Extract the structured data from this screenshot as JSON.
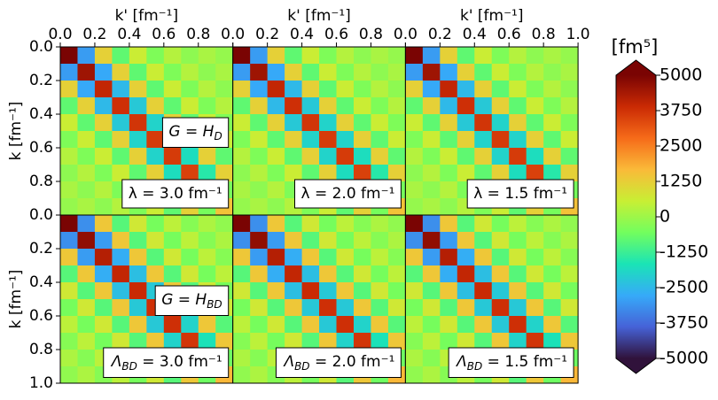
{
  "chart_data": {
    "type": "heatmap",
    "xlabel": "k' [fm⁻¹]",
    "ylabel": "k [fm⁻¹]",
    "xlim": [
      0,
      1
    ],
    "ylim": [
      0,
      1
    ],
    "xticks": [
      {
        "value": 0,
        "label": "0.0"
      },
      {
        "value": 0.2,
        "label": "0.2"
      },
      {
        "value": 0.4,
        "label": "0.4"
      },
      {
        "value": 0.6,
        "label": "0.6"
      },
      {
        "value": 0.8,
        "label": "0.8"
      },
      {
        "value": 1,
        "label": "1.0"
      }
    ],
    "yticks": [
      {
        "value": 0,
        "label": "0.0"
      },
      {
        "value": 0.2,
        "label": "0.2"
      },
      {
        "value": 0.4,
        "label": "0.4"
      },
      {
        "value": 0.6,
        "label": "0.6"
      },
      {
        "value": 0.8,
        "label": "0.8"
      },
      {
        "value": 1,
        "label": "1.0"
      }
    ],
    "colorbar": {
      "label": "[fm⁵]",
      "lim": [
        -5000,
        5000
      ],
      "ticks": [
        5000,
        3750,
        2500,
        1250,
        0,
        -1250,
        -2500,
        -3750,
        -5000
      ],
      "colormap": [
        "#30123b",
        "#4662d7",
        "#36aaf9",
        "#1ae4b6",
        "#72fe5e",
        "#c8ef34",
        "#faba39",
        "#f66b19",
        "#ca2a04",
        "#7a0403"
      ]
    },
    "panels": [
      {
        "annotations": [
          {
            "main": "G = H",
            "sub": "D"
          },
          {
            "text": "λ = 3.0 fm⁻¹"
          }
        ],
        "z": [
          [
            5000,
            -3000,
            1200,
            -800,
            600,
            -400,
            300,
            -200,
            150,
            -100
          ],
          [
            -3000,
            4500,
            -2800,
            1200,
            -800,
            600,
            -400,
            300,
            -200,
            150
          ],
          [
            1200,
            -2800,
            4000,
            -2500,
            1200,
            -800,
            600,
            -400,
            300,
            -200
          ],
          [
            -800,
            1200,
            -2500,
            3800,
            -2200,
            1200,
            -800,
            600,
            -400,
            300
          ],
          [
            600,
            -800,
            1200,
            -2200,
            3700,
            -2000,
            1200,
            -800,
            600,
            -400
          ],
          [
            -400,
            600,
            -800,
            1200,
            -2000,
            3600,
            -2000,
            1200,
            -800,
            600
          ],
          [
            300,
            -400,
            600,
            -800,
            1200,
            -2000,
            3600,
            -1800,
            1200,
            -800
          ],
          [
            -200,
            300,
            -400,
            600,
            -800,
            1200,
            -1800,
            3500,
            -1500,
            1200
          ],
          [
            150,
            -200,
            300,
            -400,
            600,
            -800,
            1200,
            -1500,
            3000,
            -500
          ],
          [
            -100,
            150,
            -200,
            300,
            -400,
            600,
            -800,
            1200,
            -500,
            1500
          ]
        ]
      },
      {
        "annotations": [
          {
            "text": "λ = 2.0 fm⁻¹"
          }
        ],
        "z": [
          [
            5000,
            -3000,
            1200,
            -800,
            600,
            -400,
            300,
            -200,
            150,
            -100
          ],
          [
            -3000,
            4500,
            -2800,
            1200,
            -800,
            600,
            -400,
            300,
            -200,
            150
          ],
          [
            1200,
            -2800,
            4000,
            -2500,
            1200,
            -800,
            600,
            -400,
            300,
            -200
          ],
          [
            -800,
            1200,
            -2500,
            3800,
            -2200,
            1200,
            -800,
            600,
            -400,
            300
          ],
          [
            600,
            -800,
            1200,
            -2200,
            3700,
            -2000,
            1200,
            -800,
            600,
            -400
          ],
          [
            -400,
            600,
            -800,
            1200,
            -2000,
            3600,
            -2000,
            1200,
            -800,
            600
          ],
          [
            300,
            -400,
            600,
            -800,
            1200,
            -2000,
            3600,
            -1800,
            1200,
            -800
          ],
          [
            -200,
            300,
            -400,
            600,
            -800,
            1200,
            -1800,
            3500,
            -1500,
            1200
          ],
          [
            150,
            -200,
            300,
            -400,
            600,
            -800,
            1200,
            -1500,
            3000,
            -500
          ],
          [
            -100,
            150,
            -200,
            300,
            -400,
            600,
            -800,
            1200,
            -500,
            1500
          ]
        ]
      },
      {
        "annotations": [
          {
            "text": "λ = 1.5 fm⁻¹"
          }
        ],
        "z": [
          [
            5000,
            -3000,
            1200,
            -800,
            600,
            -400,
            300,
            -200,
            150,
            -100
          ],
          [
            -3000,
            4500,
            -2800,
            1200,
            -800,
            600,
            -400,
            300,
            -200,
            150
          ],
          [
            1200,
            -2800,
            4000,
            -2500,
            1200,
            -800,
            600,
            -400,
            300,
            -200
          ],
          [
            -800,
            1200,
            -2500,
            3800,
            -2200,
            1200,
            -800,
            600,
            -400,
            300
          ],
          [
            600,
            -800,
            1200,
            -2200,
            3700,
            -2000,
            1200,
            -800,
            600,
            -400
          ],
          [
            -400,
            600,
            -800,
            1200,
            -2000,
            3600,
            -2000,
            1200,
            -800,
            600
          ],
          [
            300,
            -400,
            600,
            -800,
            1200,
            -2000,
            3600,
            -1800,
            1200,
            -800
          ],
          [
            -200,
            300,
            -400,
            600,
            -800,
            1200,
            -1800,
            3500,
            -1500,
            1200
          ],
          [
            150,
            -200,
            300,
            -400,
            600,
            -800,
            1200,
            -1500,
            3000,
            -500
          ],
          [
            -100,
            150,
            -200,
            300,
            -400,
            600,
            -800,
            1200,
            -500,
            1500
          ]
        ]
      },
      {
        "annotations": [
          {
            "main": "G = H",
            "sub": "BD"
          },
          {
            "main": "Λ",
            "sub": "BD",
            "rest": " = 3.0 fm⁻¹"
          }
        ],
        "z": [
          [
            5000,
            -3200,
            1400,
            -900,
            700,
            -500,
            400,
            -300,
            200,
            -150
          ],
          [
            -3200,
            4700,
            -3000,
            1400,
            -900,
            700,
            -500,
            400,
            -300,
            200
          ],
          [
            1400,
            -3000,
            4200,
            -2700,
            1400,
            -900,
            700,
            -500,
            400,
            -300
          ],
          [
            -900,
            1400,
            -2700,
            4000,
            -2400,
            1400,
            -900,
            700,
            -500,
            400
          ],
          [
            700,
            -900,
            1400,
            -2400,
            3900,
            -2200,
            1400,
            -900,
            700,
            -500
          ],
          [
            -500,
            700,
            -900,
            1400,
            -2200,
            3800,
            -2200,
            1400,
            -900,
            700
          ],
          [
            400,
            -500,
            700,
            -900,
            1400,
            -2200,
            3800,
            -2000,
            1400,
            -900
          ],
          [
            -300,
            400,
            -500,
            700,
            -900,
            1400,
            -2000,
            3700,
            -1700,
            1400
          ],
          [
            200,
            -300,
            400,
            -500,
            700,
            -900,
            1400,
            -1700,
            3200,
            -600
          ],
          [
            -150,
            200,
            -300,
            400,
            -500,
            700,
            -900,
            1400,
            -600,
            1700
          ]
        ]
      },
      {
        "annotations": [
          {
            "main": "Λ",
            "sub": "BD",
            "rest": " = 2.0 fm⁻¹"
          }
        ],
        "z": [
          [
            5000,
            -3200,
            1400,
            -900,
            700,
            -500,
            400,
            -300,
            200,
            -150
          ],
          [
            -3200,
            4700,
            -3000,
            1400,
            -900,
            700,
            -500,
            400,
            -300,
            200
          ],
          [
            1400,
            -3000,
            4200,
            -2700,
            1400,
            -900,
            700,
            -500,
            400,
            -300
          ],
          [
            -900,
            1400,
            -2700,
            4000,
            -2400,
            1400,
            -900,
            700,
            -500,
            400
          ],
          [
            700,
            -900,
            1400,
            -2400,
            3900,
            -2200,
            1400,
            -900,
            700,
            -500
          ],
          [
            -500,
            700,
            -900,
            1400,
            -2200,
            3800,
            -2200,
            1400,
            -900,
            700
          ],
          [
            400,
            -500,
            700,
            -900,
            1400,
            -2200,
            3800,
            -2000,
            1400,
            -900
          ],
          [
            -300,
            400,
            -500,
            700,
            -900,
            1400,
            -2000,
            3700,
            -1700,
            1400
          ],
          [
            200,
            -300,
            400,
            -500,
            700,
            -900,
            1400,
            -1700,
            3200,
            -600
          ],
          [
            -150,
            200,
            -300,
            400,
            -500,
            700,
            -900,
            1400,
            -600,
            1700
          ]
        ]
      },
      {
        "annotations": [
          {
            "main": "Λ",
            "sub": "BD",
            "rest": " = 1.5 fm⁻¹"
          }
        ],
        "z": [
          [
            5000,
            -3200,
            1400,
            -900,
            700,
            -500,
            400,
            -300,
            200,
            -150
          ],
          [
            -3200,
            4700,
            -3000,
            1400,
            -900,
            700,
            -500,
            400,
            -300,
            200
          ],
          [
            1400,
            -3000,
            4200,
            -2700,
            1400,
            -900,
            700,
            -500,
            400,
            -300
          ],
          [
            -900,
            1400,
            -2700,
            4000,
            -2400,
            1400,
            -900,
            700,
            -500,
            400
          ],
          [
            700,
            -900,
            1400,
            -2400,
            3900,
            -2200,
            1400,
            -900,
            700,
            -500
          ],
          [
            -500,
            700,
            -900,
            1400,
            -2200,
            3800,
            -2200,
            1400,
            -900,
            700
          ],
          [
            400,
            -500,
            700,
            -900,
            1400,
            -2200,
            3800,
            -2000,
            1400,
            -900
          ],
          [
            -300,
            400,
            -500,
            700,
            -900,
            1400,
            -2000,
            3700,
            -1700,
            1400
          ],
          [
            200,
            -300,
            400,
            -500,
            700,
            -900,
            1400,
            -1700,
            3200,
            -600
          ],
          [
            -150,
            200,
            -300,
            400,
            -500,
            700,
            -900,
            1400,
            -600,
            1700
          ]
        ]
      }
    ]
  }
}
